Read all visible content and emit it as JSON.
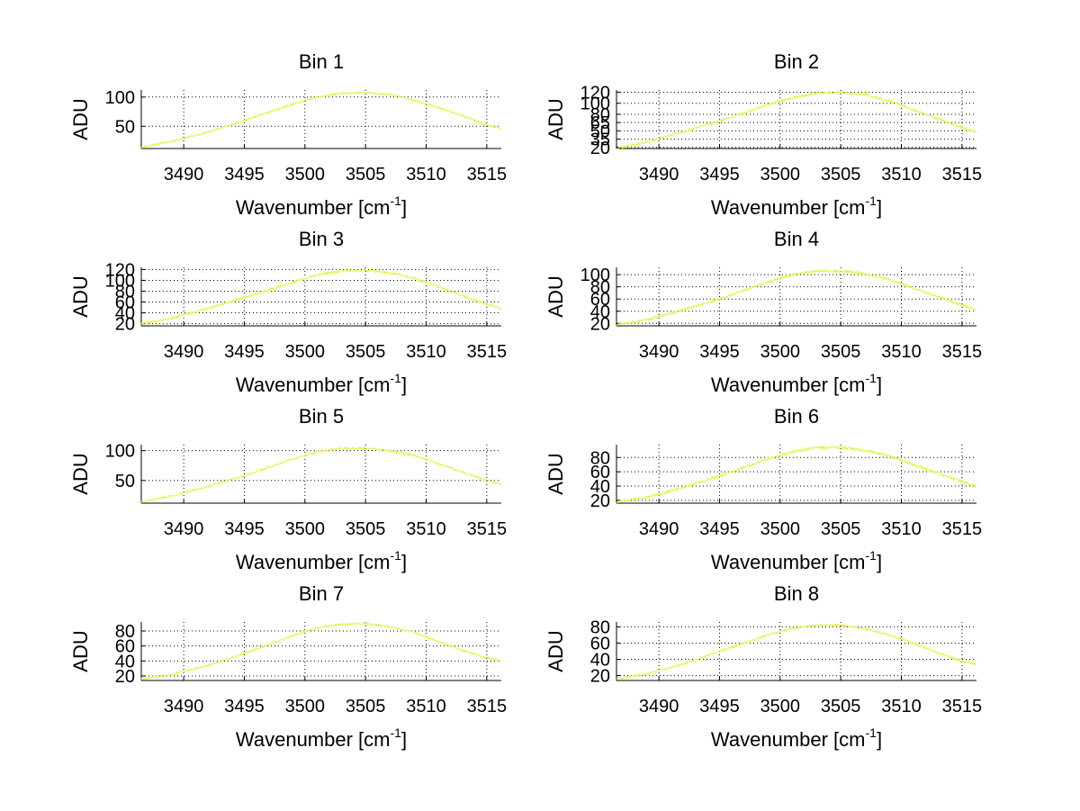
{
  "figure": {
    "background": "#ffffff"
  },
  "chart_data": [
    {
      "type": "line",
      "title": "Bin 1",
      "xlabel": "Wavenumber [cm",
      "xlabel_sup": "-1",
      "xlabel_close": "]",
      "ylabel": "ADU",
      "xlim": [
        3486.5,
        3516.2
      ],
      "ylim": [
        12,
        112
      ],
      "xticks": [
        3490,
        3495,
        3500,
        3505,
        3510,
        3515
      ],
      "yticks": [
        50,
        100
      ],
      "grid": true,
      "series": [
        {
          "color": "#e5f23d",
          "noise": 1.5,
          "x": [
            3486.5,
            3489,
            3492,
            3495,
            3497,
            3499,
            3501,
            3503,
            3505,
            3507,
            3509,
            3511,
            3513,
            3515,
            3516.2
          ],
          "y": [
            14,
            24,
            40,
            60,
            74,
            88,
            100,
            106,
            108,
            104,
            95,
            82,
            68,
            52,
            45
          ]
        }
      ]
    },
    {
      "type": "line",
      "title": "Bin 2",
      "xlabel": "Wavenumber [cm",
      "xlabel_sup": "-1",
      "xlabel_close": "]",
      "ylabel": "ADU",
      "xlim": [
        3486.5,
        3516.2
      ],
      "ylim": [
        18,
        124
      ],
      "xticks": [
        3490,
        3495,
        3500,
        3505,
        3510,
        3515
      ],
      "yticks": [
        20,
        35,
        50,
        65,
        80,
        100,
        120
      ],
      "grid": true,
      "series": [
        {
          "color": "#e5f23d",
          "noise": 2,
          "x": [
            3486.5,
            3489,
            3492,
            3495,
            3497,
            3499,
            3501,
            3503,
            3505,
            3507,
            3509,
            3511,
            3513,
            3515,
            3516.2
          ],
          "y": [
            18,
            30,
            48,
            68,
            82,
            98,
            110,
            118,
            120,
            116,
            104,
            88,
            72,
            56,
            48
          ]
        }
      ]
    },
    {
      "type": "line",
      "title": "Bin 3",
      "xlabel": "Wavenumber [cm",
      "xlabel_sup": "-1",
      "xlabel_close": "]",
      "ylabel": "ADU",
      "xlim": [
        3486.5,
        3516.2
      ],
      "ylim": [
        16,
        124
      ],
      "xticks": [
        3490,
        3495,
        3500,
        3505,
        3510,
        3515
      ],
      "yticks": [
        20,
        40,
        60,
        80,
        100,
        120
      ],
      "grid": true,
      "series": [
        {
          "color": "#e5f23d",
          "noise": 2,
          "x": [
            3486.5,
            3489,
            3492,
            3495,
            3497,
            3499,
            3501,
            3503,
            3505,
            3507,
            3509,
            3511,
            3513,
            3515,
            3516.2
          ],
          "y": [
            20,
            30,
            48,
            68,
            82,
            96,
            110,
            117,
            118,
            114,
            104,
            88,
            72,
            56,
            48
          ]
        }
      ]
    },
    {
      "type": "line",
      "title": "Bin 4",
      "xlabel": "Wavenumber [cm",
      "xlabel_sup": "-1",
      "xlabel_close": "]",
      "ylabel": "ADU",
      "xlim": [
        3486.5,
        3516.2
      ],
      "ylim": [
        16,
        112
      ],
      "xticks": [
        3490,
        3495,
        3500,
        3505,
        3510,
        3515
      ],
      "yticks": [
        20,
        40,
        60,
        80,
        100
      ],
      "grid": true,
      "series": [
        {
          "color": "#e5f23d",
          "noise": 1.8,
          "x": [
            3486.5,
            3489,
            3492,
            3495,
            3497,
            3499,
            3501,
            3503,
            3505,
            3507,
            3509,
            3511,
            3513,
            3515,
            3516.2
          ],
          "y": [
            18,
            26,
            42,
            60,
            74,
            88,
            100,
            106,
            106,
            102,
            92,
            78,
            64,
            50,
            42
          ]
        }
      ]
    },
    {
      "type": "line",
      "title": "Bin 5",
      "xlabel": "Wavenumber [cm",
      "xlabel_sup": "-1",
      "xlabel_close": "]",
      "ylabel": "ADU",
      "xlim": [
        3486.5,
        3516.2
      ],
      "ylim": [
        12,
        110
      ],
      "xticks": [
        3490,
        3495,
        3500,
        3505,
        3510,
        3515
      ],
      "yticks": [
        50,
        100
      ],
      "grid": true,
      "series": [
        {
          "color": "#e5f23d",
          "noise": 1.5,
          "x": [
            3486.5,
            3489,
            3492,
            3495,
            3497,
            3499,
            3501,
            3503,
            3505,
            3507,
            3509,
            3511,
            3513,
            3515,
            3516.2
          ],
          "y": [
            14,
            24,
            40,
            58,
            72,
            86,
            98,
            104,
            104,
            100,
            92,
            78,
            64,
            50,
            44
          ]
        }
      ]
    },
    {
      "type": "line",
      "title": "Bin 6",
      "xlabel": "Wavenumber [cm",
      "xlabel_sup": "-1",
      "xlabel_close": "]",
      "ylabel": "ADU",
      "xlim": [
        3486.5,
        3516.2
      ],
      "ylim": [
        16,
        98
      ],
      "xticks": [
        3490,
        3495,
        3500,
        3505,
        3510,
        3515
      ],
      "yticks": [
        20,
        40,
        60,
        80
      ],
      "grid": true,
      "series": [
        {
          "color": "#e5f23d",
          "noise": 1.8,
          "x": [
            3486.5,
            3489,
            3492,
            3495,
            3497,
            3499,
            3501,
            3503,
            3505,
            3507,
            3509,
            3511,
            3513,
            3515,
            3516.2
          ],
          "y": [
            18,
            24,
            38,
            54,
            66,
            78,
            88,
            94,
            94,
            90,
            82,
            70,
            58,
            46,
            40
          ]
        }
      ]
    },
    {
      "type": "line",
      "title": "Bin 7",
      "xlabel": "Wavenumber [cm",
      "xlabel_sup": "-1",
      "xlabel_close": "]",
      "ylabel": "ADU",
      "xlim": [
        3486.5,
        3516.2
      ],
      "ylim": [
        14,
        92
      ],
      "xticks": [
        3490,
        3495,
        3500,
        3505,
        3510,
        3515
      ],
      "yticks": [
        20,
        40,
        60,
        80
      ],
      "grid": true,
      "series": [
        {
          "color": "#e5f23d",
          "noise": 1.2,
          "x": [
            3486.5,
            3489,
            3492,
            3495,
            3497,
            3499,
            3501,
            3503,
            3505,
            3507,
            3509,
            3511,
            3513,
            3515,
            3516.2
          ],
          "y": [
            16,
            22,
            34,
            50,
            62,
            74,
            84,
            89,
            90,
            86,
            78,
            66,
            54,
            44,
            40
          ]
        }
      ]
    },
    {
      "type": "line",
      "title": "Bin 8",
      "xlabel": "Wavenumber [cm",
      "xlabel_sup": "-1",
      "xlabel_close": "]",
      "ylabel": "ADU",
      "xlim": [
        3486.5,
        3516.2
      ],
      "ylim": [
        14,
        86
      ],
      "xticks": [
        3490,
        3495,
        3500,
        3505,
        3510,
        3515
      ],
      "yticks": [
        20,
        40,
        60,
        80
      ],
      "grid": true,
      "series": [
        {
          "color": "#e5f23d",
          "noise": 1.2,
          "x": [
            3486.5,
            3489,
            3492,
            3495,
            3497,
            3499,
            3501,
            3503,
            3505,
            3507,
            3509,
            3511,
            3513,
            3515,
            3516.2
          ],
          "y": [
            16,
            22,
            34,
            50,
            60,
            70,
            78,
            82,
            82,
            78,
            70,
            60,
            48,
            38,
            34
          ]
        }
      ]
    }
  ]
}
